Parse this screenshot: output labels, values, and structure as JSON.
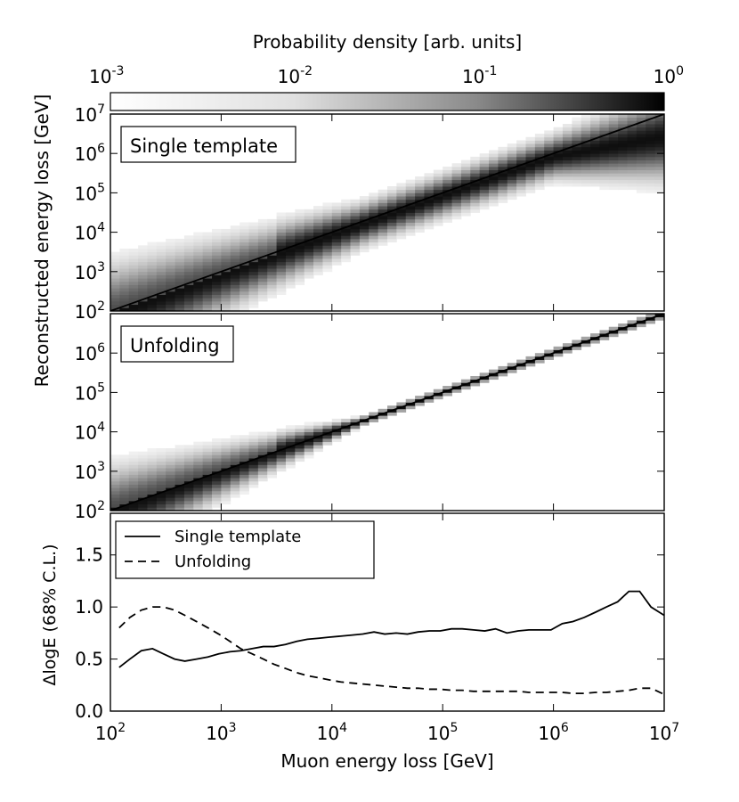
{
  "chart_data": [
    {
      "type": "colorbar",
      "label": "Probability density [arb. units]",
      "tick_labels": [
        {
          "value": 0.001,
          "base": "10",
          "exp": "-3"
        },
        {
          "value": 0.01,
          "base": "10",
          "exp": "-2"
        },
        {
          "value": 0.1,
          "base": "10",
          "exp": "-1"
        },
        {
          "value": 1,
          "base": "10",
          "exp": "0"
        }
      ],
      "scale": "log",
      "range": [
        0.001,
        1
      ]
    },
    {
      "type": "heatmap",
      "label": "Single template",
      "ylabel": "Reconstructed energy loss [GeV]",
      "x_log_range": [
        2,
        7
      ],
      "y_log_range": [
        2,
        7
      ],
      "y_tick_labels": [
        {
          "value": 100,
          "base": "10",
          "exp": "2"
        },
        {
          "value": 1000,
          "base": "10",
          "exp": "3"
        },
        {
          "value": 10000,
          "base": "10",
          "exp": "4"
        },
        {
          "value": 100000,
          "base": "10",
          "exp": "5"
        },
        {
          "value": 1000000,
          "base": "10",
          "exp": "6"
        },
        {
          "value": 10000000,
          "base": "10",
          "exp": "7"
        }
      ],
      "reference_line": {
        "x": [
          100,
          10000000
        ],
        "y": [
          100,
          10000000
        ]
      },
      "band": {
        "offset_log": -0.08,
        "width_log": 0.3,
        "low_energy_spread_log": 0.4,
        "high_energy_drop_log": 0.5
      }
    },
    {
      "type": "heatmap",
      "label": "Unfolding",
      "x_log_range": [
        2,
        7
      ],
      "y_log_range": [
        2,
        7
      ],
      "y_tick_labels": [
        {
          "value": 100,
          "base": "10",
          "exp": "2"
        },
        {
          "value": 1000,
          "base": "10",
          "exp": "3"
        },
        {
          "value": 10000,
          "base": "10",
          "exp": "4"
        },
        {
          "value": 100000,
          "base": "10",
          "exp": "5"
        },
        {
          "value": 1000000,
          "base": "10",
          "exp": "6"
        }
      ],
      "reference_line": {
        "x": [
          100,
          10000000
        ],
        "y": [
          100,
          10000000
        ]
      },
      "band": {
        "offset_log": 0.0,
        "width_log": 0.06,
        "low_energy_spread_log": 0.55,
        "high_energy_drop_log": 0.0
      }
    },
    {
      "type": "line",
      "xlabel": "Muon energy loss [GeV]",
      "ylabel": "ΔlogE (68% C.L.)",
      "xscale": "log",
      "xlim": [
        100,
        10000000
      ],
      "ylim": [
        0.0,
        1.9
      ],
      "x_tick_labels": [
        {
          "value": 100,
          "base": "10",
          "exp": "2"
        },
        {
          "value": 1000,
          "base": "10",
          "exp": "3"
        },
        {
          "value": 10000,
          "base": "10",
          "exp": "4"
        },
        {
          "value": 100000,
          "base": "10",
          "exp": "5"
        },
        {
          "value": 1000000,
          "base": "10",
          "exp": "6"
        },
        {
          "value": 10000000,
          "base": "10",
          "exp": "7"
        }
      ],
      "y_tick_labels": [
        "0.0",
        "0.5",
        "1.0",
        "1.5"
      ],
      "y_tick_values": [
        0.0,
        0.5,
        1.0,
        1.5
      ],
      "legend_position": "top-left",
      "series": [
        {
          "name": "Single template",
          "style": "solid",
          "x": [
            120,
            150,
            190,
            240,
            300,
            380,
            470,
            600,
            760,
            950,
            1200,
            1500,
            1900,
            2400,
            3000,
            3800,
            4800,
            6000,
            7600,
            9500,
            12000,
            15000,
            19000,
            24000,
            30000,
            38000,
            48000,
            60000,
            76000,
            95000,
            120000,
            150000,
            190000,
            240000,
            300000,
            380000,
            480000,
            600000,
            760000,
            950000,
            1200000,
            1500000,
            1900000,
            2400000,
            3000000,
            3800000,
            4800000,
            6000000,
            7600000,
            10000000
          ],
          "y": [
            0.42,
            0.5,
            0.58,
            0.6,
            0.55,
            0.5,
            0.48,
            0.5,
            0.52,
            0.55,
            0.57,
            0.58,
            0.6,
            0.62,
            0.62,
            0.64,
            0.67,
            0.69,
            0.7,
            0.71,
            0.72,
            0.73,
            0.74,
            0.76,
            0.74,
            0.75,
            0.74,
            0.76,
            0.77,
            0.77,
            0.79,
            0.79,
            0.78,
            0.77,
            0.79,
            0.75,
            0.77,
            0.78,
            0.78,
            0.78,
            0.84,
            0.86,
            0.9,
            0.95,
            1.0,
            1.05,
            1.15,
            1.15,
            1.0,
            0.92
          ]
        },
        {
          "name": "Unfolding",
          "style": "dashed",
          "x": [
            120,
            150,
            190,
            240,
            300,
            380,
            470,
            600,
            760,
            950,
            1200,
            1500,
            1900,
            2400,
            3000,
            3800,
            4800,
            6000,
            7600,
            9500,
            12000,
            15000,
            19000,
            24000,
            30000,
            38000,
            48000,
            60000,
            76000,
            95000,
            120000,
            150000,
            190000,
            240000,
            300000,
            380000,
            480000,
            600000,
            760000,
            950000,
            1200000,
            1500000,
            1900000,
            2400000,
            3000000,
            3800000,
            4800000,
            6000000,
            7600000,
            10000000
          ],
          "y": [
            0.8,
            0.9,
            0.97,
            1.0,
            1.0,
            0.97,
            0.92,
            0.86,
            0.8,
            0.74,
            0.67,
            0.6,
            0.55,
            0.5,
            0.45,
            0.41,
            0.37,
            0.34,
            0.32,
            0.3,
            0.28,
            0.27,
            0.26,
            0.25,
            0.24,
            0.23,
            0.22,
            0.22,
            0.21,
            0.21,
            0.2,
            0.2,
            0.19,
            0.19,
            0.19,
            0.19,
            0.19,
            0.18,
            0.18,
            0.18,
            0.18,
            0.17,
            0.17,
            0.18,
            0.18,
            0.19,
            0.2,
            0.22,
            0.22,
            0.16
          ]
        }
      ]
    }
  ]
}
